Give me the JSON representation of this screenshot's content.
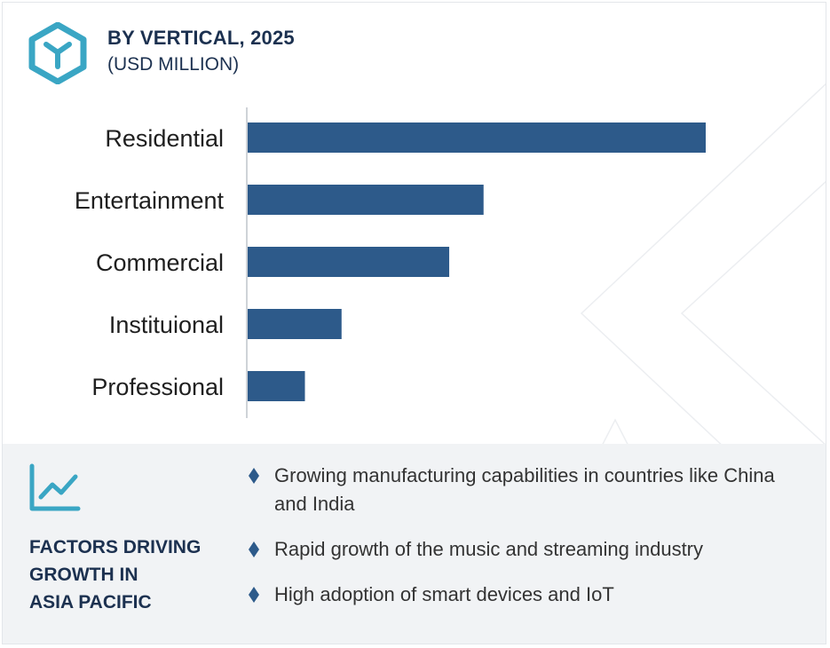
{
  "header": {
    "title": "BY VERTICAL, 2025",
    "subtitle": "(USD MILLION)",
    "logo_icon": "cube-logo-icon"
  },
  "colors": {
    "bar": "#2d5a8a",
    "accent": "#3aa6c4",
    "heading": "#1c3150",
    "panel": "#f1f3f5"
  },
  "chart_data": {
    "type": "bar",
    "orientation": "horizontal",
    "categories": [
      "Residential",
      "Entertainment",
      "Commercial",
      "Instituional",
      "Professional"
    ],
    "values": [
      100,
      51.5,
      44,
      20.5,
      12.5
    ],
    "title": "BY VERTICAL, 2025",
    "subtitle": "(USD MILLION)",
    "xlabel": "",
    "ylabel": "",
    "xlim": [
      0,
      100
    ],
    "grid": false,
    "legend": false
  },
  "factors": {
    "icon": "growth-chart-icon",
    "title": "FACTORS DRIVING\nGROWTH IN\nASIA PACIFIC",
    "bullets": [
      "Growing manufacturing capabilities in countries like China and India",
      "Rapid growth of the music and streaming industry",
      "High adoption of smart devices and IoT"
    ]
  }
}
